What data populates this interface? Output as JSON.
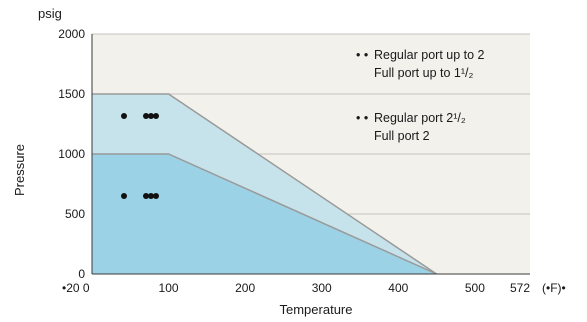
{
  "chart_data": {
    "type": "area",
    "title": "",
    "ylabel": "Pressure",
    "xlabel": "Temperature",
    "y_unit": "psig",
    "x_unit_label": "(•F)•",
    "x_tick_labels": [
      "•20 0",
      "100",
      "200",
      "300",
      "400",
      "500",
      "572"
    ],
    "x_ticks": [
      0,
      100,
      200,
      300,
      400,
      500,
      572
    ],
    "y_ticks": [
      0,
      500,
      1000,
      1500,
      2000
    ],
    "xlim": [
      0,
      572
    ],
    "ylim": [
      0,
      2000
    ],
    "grid": true,
    "background_color": "#f3f1eb",
    "grid_color": "#c6c4be",
    "series": [
      {
        "name": "Regular port up to 2\nFull port up to 1½",
        "color": "#c6e3eb",
        "points": [
          [
            0,
            1500
          ],
          [
            100,
            1500
          ],
          [
            450,
            0
          ]
        ]
      },
      {
        "name": "Regular port 2½\nFull port 2",
        "color": "#9cd2e6",
        "points": [
          [
            0,
            1000
          ],
          [
            100,
            1000
          ],
          [
            450,
            0
          ]
        ]
      }
    ],
    "legend": {
      "placement": "top-right",
      "items": [
        {
          "marker": "• •",
          "line1": "Regular port up to 2",
          "line2": "Full port up to 1¹/₂"
        },
        {
          "marker": "• •",
          "line1": "Regular port 2¹/₂",
          "line2": "Full port 2"
        }
      ]
    },
    "dot_markers": [
      {
        "region": "Regular port up to 2\nFull port up to 1½",
        "label": "•  • • •"
      },
      {
        "region": "Regular port 2½\nFull port 2",
        "label": "•  • • •"
      }
    ]
  }
}
